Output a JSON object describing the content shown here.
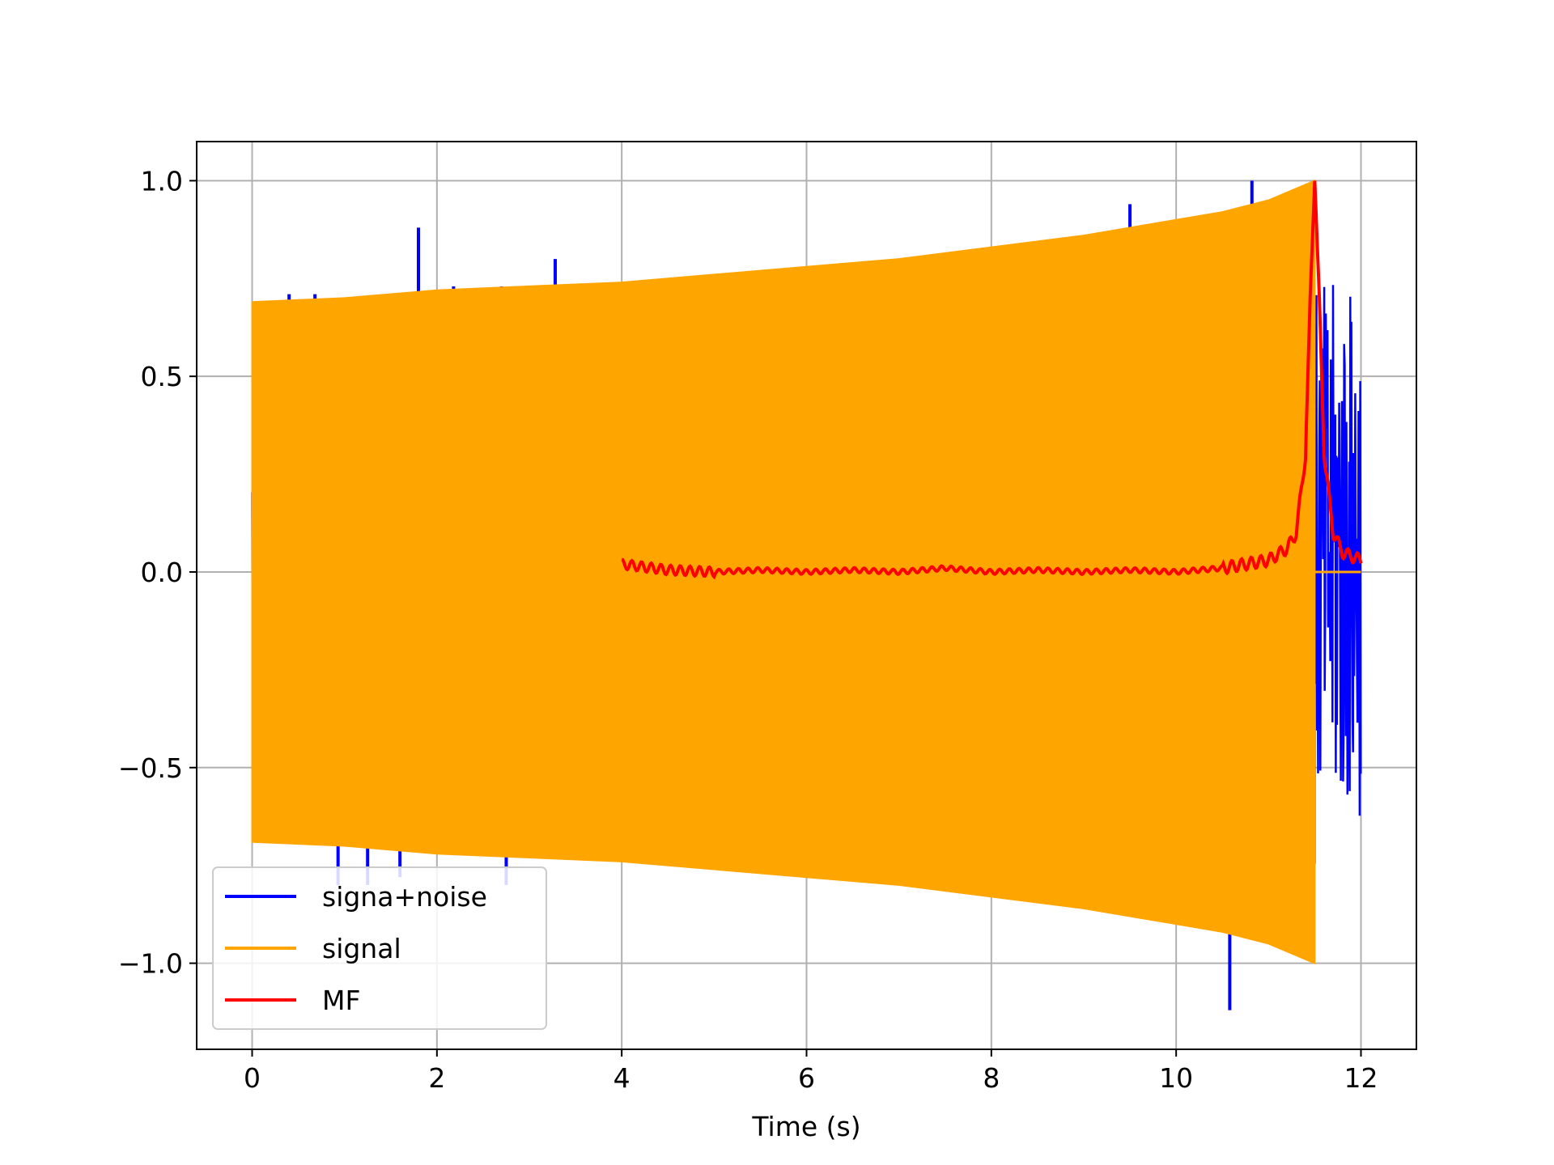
{
  "chart_data": {
    "type": "line",
    "title": "",
    "xlabel": "Time (s)",
    "ylabel": "",
    "xlim": [
      -0.6,
      12.6
    ],
    "ylim": [
      -1.22,
      1.1
    ],
    "xticks": [
      0,
      2,
      4,
      6,
      8,
      10,
      12
    ],
    "xtick_labels": [
      "0",
      "2",
      "4",
      "6",
      "8",
      "10",
      "12"
    ],
    "yticks": [
      -1.0,
      -0.5,
      0.0,
      0.5,
      1.0
    ],
    "ytick_labels": [
      "−1.0",
      "−0.5",
      "0.0",
      "0.5",
      "1.0"
    ],
    "grid": true,
    "legend_position": "lower-left",
    "series": [
      {
        "name": "signa+noise",
        "color": "#0000ff",
        "description_values": {
          "time_range": [
            0,
            12
          ],
          "notable_spikes": [
            {
              "x": 0.4,
              "y": 0.71
            },
            {
              "x": 0.68,
              "y": 0.71
            },
            {
              "x": 0.93,
              "y": -0.8
            },
            {
              "x": 1.25,
              "y": -0.8
            },
            {
              "x": 1.6,
              "y": -0.78
            },
            {
              "x": 1.8,
              "y": 0.88
            },
            {
              "x": 2.18,
              "y": 0.73
            },
            {
              "x": 2.7,
              "y": 0.73
            },
            {
              "x": 2.75,
              "y": -0.8
            },
            {
              "x": 3.28,
              "y": 0.8
            },
            {
              "x": 9.5,
              "y": 0.94
            },
            {
              "x": 10.58,
              "y": -1.12
            },
            {
              "x": 10.82,
              "y": 1.0
            }
          ],
          "tail_range": {
            "x": [
              11.5,
              12.0
            ],
            "y": [
              -0.64,
              0.74
            ]
          }
        }
      },
      {
        "name": "signal",
        "color": "#ffa500",
        "envelope": [
          {
            "x": 0,
            "y": 0.69
          },
          {
            "x": 1,
            "y": 0.7
          },
          {
            "x": 2,
            "y": 0.72
          },
          {
            "x": 3,
            "y": 0.73
          },
          {
            "x": 4,
            "y": 0.74
          },
          {
            "x": 5,
            "y": 0.76
          },
          {
            "x": 6,
            "y": 0.78
          },
          {
            "x": 7,
            "y": 0.8
          },
          {
            "x": 8,
            "y": 0.83
          },
          {
            "x": 9,
            "y": 0.86
          },
          {
            "x": 10,
            "y": 0.9
          },
          {
            "x": 10.5,
            "y": 0.92
          },
          {
            "x": 11,
            "y": 0.95
          },
          {
            "x": 11.3,
            "y": 0.98
          },
          {
            "x": 11.5,
            "y": 1.0
          }
        ],
        "end_x": 11.5
      },
      {
        "name": "MF",
        "color": "#ff0000",
        "points": [
          {
            "x": 4.0,
            "y": 0.02
          },
          {
            "x": 4.5,
            "y": 0.005
          },
          {
            "x": 5.0,
            "y": 0.0
          },
          {
            "x": 5.5,
            "y": 0.005
          },
          {
            "x": 6.0,
            "y": 0.0
          },
          {
            "x": 6.5,
            "y": 0.005
          },
          {
            "x": 7.0,
            "y": 0.0
          },
          {
            "x": 7.5,
            "y": 0.01
          },
          {
            "x": 8.0,
            "y": 0.0
          },
          {
            "x": 8.5,
            "y": 0.005
          },
          {
            "x": 9.0,
            "y": 0.0
          },
          {
            "x": 9.5,
            "y": 0.005
          },
          {
            "x": 10.0,
            "y": 0.0
          },
          {
            "x": 10.5,
            "y": 0.01
          },
          {
            "x": 11.0,
            "y": 0.03
          },
          {
            "x": 11.2,
            "y": 0.06
          },
          {
            "x": 11.3,
            "y": 0.1
          },
          {
            "x": 11.4,
            "y": 0.3
          },
          {
            "x": 11.45,
            "y": 0.7
          },
          {
            "x": 11.5,
            "y": 1.0
          },
          {
            "x": 11.55,
            "y": 0.7
          },
          {
            "x": 11.6,
            "y": 0.3
          },
          {
            "x": 11.7,
            "y": 0.1
          },
          {
            "x": 11.8,
            "y": 0.05
          },
          {
            "x": 12.0,
            "y": 0.03
          }
        ]
      }
    ]
  }
}
